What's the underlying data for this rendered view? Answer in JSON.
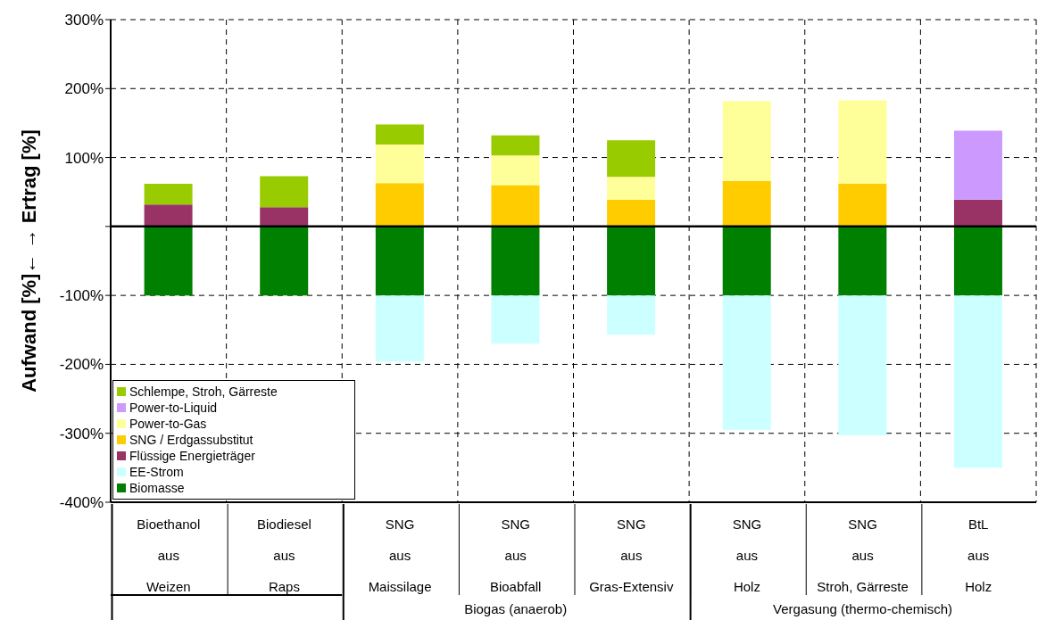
{
  "chart_data": {
    "type": "bar",
    "stacked": true,
    "ylabel": "Aufwand [%]←  → Ertrag [%]",
    "categories": [
      "Bioethanol\naus\nWeizen",
      "Biodiesel\naus\nRaps",
      "SNG\naus\nMaissilage",
      "SNG\naus\nBioabfall",
      "SNG\naus\nGras-Extensiv",
      "SNG\naus\nHolz",
      "SNG\naus\nStroh, Gärreste",
      "BtL\naus\nHolz"
    ],
    "series": [
      {
        "name": "Biomasse",
        "color": "#008000",
        "values": [
          -100,
          -100,
          -100,
          -100,
          -100,
          -100,
          -100,
          -100
        ]
      },
      {
        "name": "EE-Strom",
        "color": "#ccffff",
        "values": [
          null,
          null,
          -96,
          -70,
          -57,
          -195,
          -203,
          -250
        ]
      },
      {
        "name": "Flüssige Energieträger",
        "color": "#993366",
        "values": [
          32,
          28,
          null,
          null,
          null,
          null,
          null,
          39
        ]
      },
      {
        "name": "SNG / Erdgassubstitut",
        "color": "#ffcc00",
        "values": [
          null,
          null,
          63,
          60,
          39,
          66,
          62,
          null
        ]
      },
      {
        "name": "Power-to-Gas",
        "color": "#ffff99",
        "values": [
          null,
          null,
          56,
          43,
          33,
          116,
          121,
          null
        ]
      },
      {
        "name": "Power-to-Liquid",
        "color": "#cc99ff",
        "values": [
          null,
          null,
          null,
          null,
          null,
          null,
          null,
          100
        ]
      },
      {
        "name": "Schlempe, Stroh, Gärreste",
        "color": "#99cc00",
        "values": [
          30,
          45,
          29,
          29,
          53,
          null,
          null,
          null
        ]
      }
    ],
    "ylim": [
      -400,
      300
    ],
    "yticks": [
      {
        "value": -400,
        "label": "-400%"
      },
      {
        "value": -300,
        "label": "-300%"
      },
      {
        "value": -200,
        "label": "-200%"
      },
      {
        "value": -100,
        "label": "-100%"
      },
      {
        "value": 0,
        "label": null
      },
      {
        "value": 100,
        "label": "100%"
      },
      {
        "value": 200,
        "label": "200%"
      },
      {
        "value": 300,
        "label": "300%"
      }
    ],
    "ref_lines": [
      {
        "axis": "y",
        "value": 0,
        "color": "#000000"
      }
    ],
    "annotations": [
      "Biogas (anaerob)",
      "Vergasung (thermo-chemisch)"
    ],
    "grid": true,
    "legend": "bottom left"
  }
}
